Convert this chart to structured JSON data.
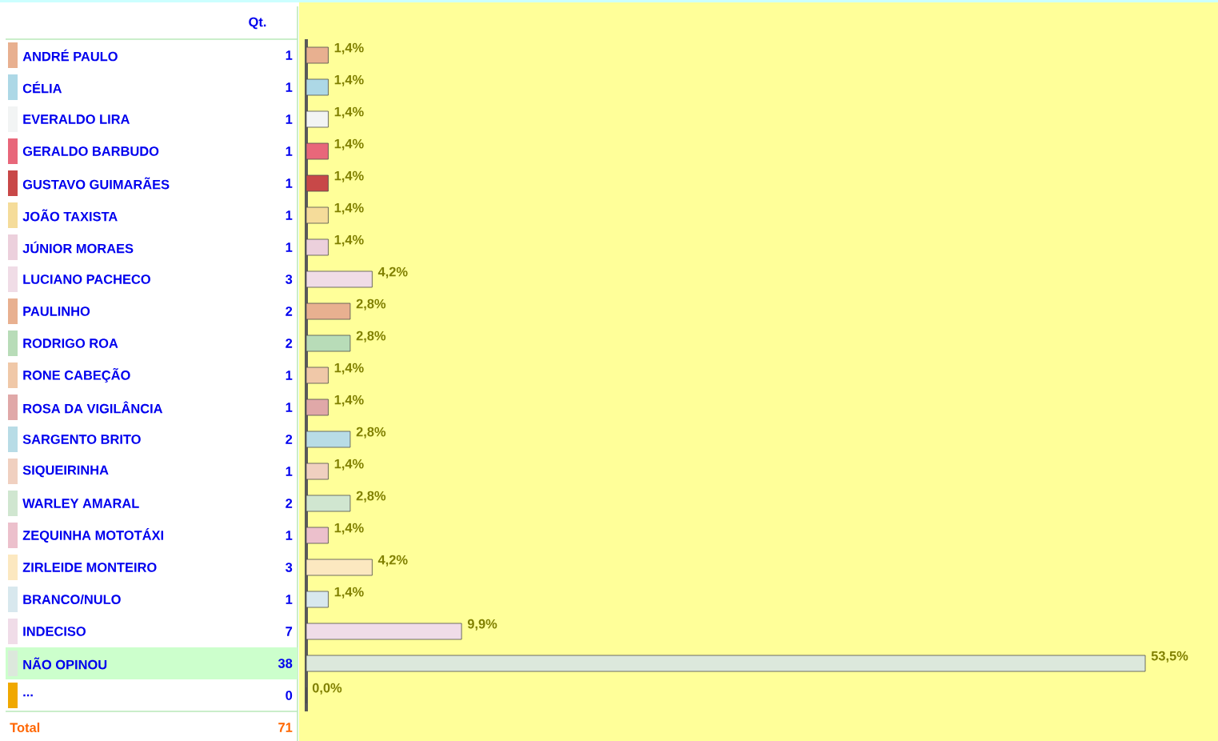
{
  "chart_data": [
    {
      "type": "bar",
      "orientation": "horizontal",
      "categories": [
        "ANDRÉ PAULO",
        "CÉLIA",
        "EVERALDO LIRA",
        "GERALDO BARBUDO",
        "GUSTAVO GUIMARÃES",
        "JOÃO TAXISTA",
        "JÚNIOR MORAES",
        "LUCIANO PACHECO",
        "PAULINHO",
        "RODRIGO ROA",
        "RONE CABEÇÃO",
        "ROSA DA VIGILÂNCIA",
        "SARGENTO BRITO",
        "SIQUEIRINHA",
        "WARLEY AMARAL",
        "ZEQUINHA MOTOTÁXI",
        "ZIRLEIDE MONTEIRO",
        "BRANCO/NULO",
        "INDECISO",
        "NÃO OPINOU",
        "..."
      ],
      "values": [
        1.4,
        1.4,
        1.4,
        1.4,
        1.4,
        1.4,
        1.4,
        4.2,
        2.8,
        2.8,
        1.4,
        1.4,
        2.8,
        1.4,
        2.8,
        1.4,
        4.2,
        1.4,
        9.9,
        53.5,
        0.0
      ],
      "value_labels": [
        "1,4%",
        "1,4%",
        "1,4%",
        "1,4%",
        "1,4%",
        "1,4%",
        "1,4%",
        "4,2%",
        "2,8%",
        "2,8%",
        "1,4%",
        "1,4%",
        "2,8%",
        "1,4%",
        "2,8%",
        "1,4%",
        "4,2%",
        "1,4%",
        "9,9%",
        "53,5%",
        "0,0%"
      ],
      "colors": [
        "#e8b090",
        "#add8e6",
        "#f2f4f4",
        "#e8677a",
        "#c84848",
        "#f5dc9a",
        "#ecd0dc",
        "#f0dce6",
        "#e8b090",
        "#b8dcb8",
        "#f0c8a8",
        "#e0a8a8",
        "#b8dce6",
        "#f0d0c0",
        "#d0e6d0",
        "#ecc0cc",
        "#fce8c0",
        "#d8e8ee",
        "#f0dce8",
        "#dce8dc",
        "#f0a800"
      ]
    },
    {
      "type": "other",
      "title": "Qt.",
      "data_labels": true,
      "values": [
        1,
        1,
        1,
        1,
        1,
        1,
        1,
        3,
        2,
        2,
        1,
        1,
        2,
        1,
        2,
        1,
        3,
        1,
        7,
        38,
        0
      ],
      "annotations": [
        "Total",
        "71"
      ]
    }
  ]
}
